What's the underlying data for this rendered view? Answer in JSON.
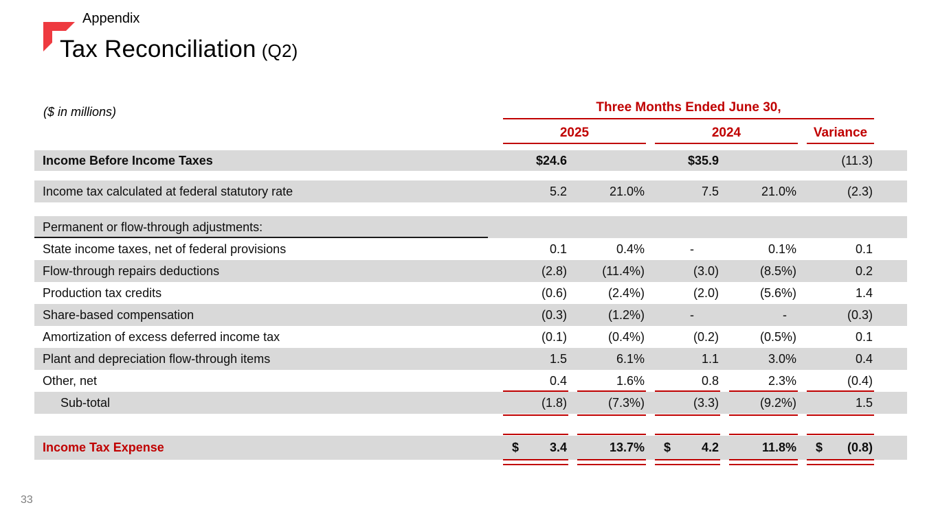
{
  "slide": {
    "eyebrow": "Appendix",
    "title": "Tax Reconciliation",
    "title_suffix": "(Q2)",
    "page_number": "33"
  },
  "colors": {
    "accent_red": "#c00000",
    "logo_red": "#ee3a40",
    "row_shade_gray": "#d9d9d9"
  },
  "icons": {
    "logo_mark": "corner-bracket-logo-icon"
  },
  "table": {
    "units_note": "($ in millions)",
    "group_header": "Three Months Ended June 30,",
    "col_headers": [
      "2025",
      "2024",
      "Variance"
    ],
    "sub_columns": [
      "amount",
      "percent",
      "amount",
      "percent",
      "variance"
    ],
    "rows": [
      {
        "label": "Income Before Income Taxes",
        "kind": "heading",
        "shaded": true,
        "gap_after": "sm",
        "values": [
          "$24.6",
          "",
          "$35.9",
          "",
          "(11.3)"
        ]
      },
      {
        "label": "Income tax calculated at federal statutory rate",
        "kind": "item",
        "shaded": true,
        "gap_after": "md",
        "values": [
          "5.2",
          "21.0%",
          "7.5",
          "21.0%",
          "(2.3)"
        ]
      },
      {
        "label": "Permanent or flow-through adjustments:",
        "kind": "section",
        "shaded": true,
        "values": [
          "",
          "",
          "",
          "",
          ""
        ]
      },
      {
        "label": "State income taxes, net of federal provisions",
        "kind": "item",
        "shaded": false,
        "values": [
          "0.1",
          "0.4%",
          "-",
          "0.1%",
          "0.1"
        ]
      },
      {
        "label": "Flow-through repairs deductions",
        "kind": "item",
        "shaded": true,
        "values": [
          "(2.8)",
          "(11.4%)",
          "(3.0)",
          "(8.5%)",
          "0.2"
        ]
      },
      {
        "label": "Production tax credits",
        "kind": "item",
        "shaded": false,
        "values": [
          "(0.6)",
          "(2.4%)",
          "(2.0)",
          "(5.6%)",
          "1.4"
        ]
      },
      {
        "label": "Share-based compensation",
        "kind": "item",
        "shaded": true,
        "values": [
          "(0.3)",
          "(1.2%)",
          "-",
          "-",
          "(0.3)"
        ]
      },
      {
        "label": "Amortization of excess deferred income tax",
        "kind": "item",
        "shaded": false,
        "values": [
          "(0.1)",
          "(0.4%)",
          "(0.2)",
          "(0.5%)",
          "0.1"
        ]
      },
      {
        "label": "Plant and depreciation flow-through items",
        "kind": "item",
        "shaded": true,
        "values": [
          "1.5",
          "6.1%",
          "1.1",
          "3.0%",
          "0.4"
        ]
      },
      {
        "label": "Other, net",
        "kind": "item",
        "shaded": false,
        "values": [
          "0.4",
          "1.6%",
          "0.8",
          "2.3%",
          "(0.4)"
        ]
      },
      {
        "label": "Sub-total",
        "kind": "subtotal",
        "shaded": true,
        "gap_after": "lg",
        "values": [
          "(1.8)",
          "(7.3%)",
          "(3.3)",
          "(9.2%)",
          "1.5"
        ]
      },
      {
        "label": "Income Tax Expense",
        "kind": "total",
        "shaded": true,
        "values": [
          [
            "$",
            "3.4"
          ],
          "13.7%",
          [
            "$",
            "4.2"
          ],
          "11.8%",
          [
            "$",
            "(0.8)"
          ]
        ]
      }
    ]
  }
}
